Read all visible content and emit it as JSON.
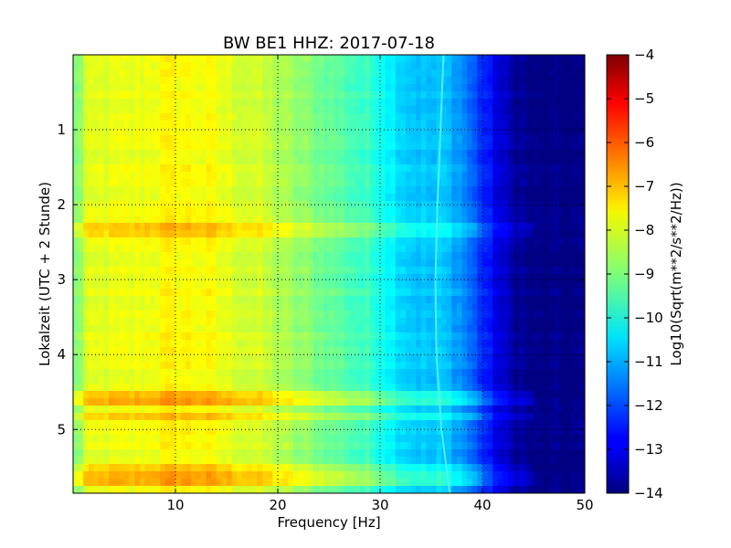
{
  "chart_data": {
    "type": "heatmap",
    "title": "BW BE1 HHZ: 2017-07-18",
    "xlabel": "Frequency [Hz]",
    "ylabel": "Lokalzeit (UTC + 2 Stunde)",
    "xlim": [
      0,
      50
    ],
    "ylim": [
      5.85,
      0.0
    ],
    "xticks": [
      10,
      20,
      30,
      40,
      50
    ],
    "xtick_labels": [
      "10",
      "20",
      "30",
      "40",
      "50"
    ],
    "yticks": [
      1,
      2,
      3,
      4,
      5
    ],
    "ytick_labels": [
      "1",
      "2",
      "3",
      "4",
      "5"
    ],
    "grid": true,
    "colormap": "jet",
    "colorbar": {
      "label": "Log10(Sqrt(m**2/s**2/Hz))",
      "range": [
        -14,
        -4
      ],
      "ticks": [
        -14,
        -13,
        -12,
        -11,
        -10,
        -9,
        -8,
        -7,
        -6,
        -5,
        -4
      ],
      "tick_labels": [
        "−14",
        "−13",
        "−12",
        "−11",
        "−10",
        "−9",
        "−8",
        "−7",
        "−6",
        "−5",
        "−4"
      ]
    },
    "spectral_profile": {
      "frequency_hz": [
        0,
        1,
        3,
        5,
        8,
        10,
        13,
        15,
        18,
        20,
        22,
        25,
        28,
        30,
        31,
        32,
        33,
        34,
        35,
        36,
        37,
        38,
        39,
        40,
        41,
        42,
        43,
        44,
        45,
        46,
        48,
        50
      ],
      "log10_amplitude": [
        -8.7,
        -8.2,
        -8.0,
        -8.0,
        -7.8,
        -7.7,
        -7.8,
        -8.0,
        -8.2,
        -8.5,
        -8.8,
        -9.2,
        -9.6,
        -9.9,
        -10.3,
        -10.5,
        -10.7,
        -10.8,
        -10.9,
        -10.8,
        -11.0,
        -11.3,
        -11.8,
        -12.3,
        -12.8,
        -13.3,
        -13.6,
        -13.8,
        -14.0,
        -14.0,
        -14.0,
        -14.0
      ]
    },
    "line_feature": {
      "label": "",
      "time_h": [
        0.0,
        1.0,
        2.0,
        3.0,
        4.0,
        5.0,
        5.85
      ],
      "frequency_hz": [
        36.2,
        35.9,
        35.6,
        35.4,
        35.5,
        36.0,
        36.8
      ]
    },
    "horizontal_bands": [
      {
        "time_h": 2.35,
        "delta": 0.6
      },
      {
        "time_h": 4.58,
        "delta": 0.9
      },
      {
        "time_h": 4.85,
        "delta": 0.6
      },
      {
        "time_h": 5.55,
        "delta": 0.7
      },
      {
        "time_h": 5.65,
        "delta": 0.9
      }
    ]
  }
}
